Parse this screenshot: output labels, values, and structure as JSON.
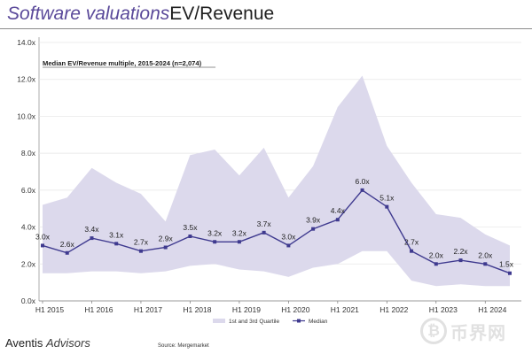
{
  "header": {
    "title_part1": "Software valuations",
    "title_part2": "EV/Revenue"
  },
  "footer": {
    "brand_part1": "Aventis ",
    "brand_part2": "Advisors",
    "source": "Source: Mergemarket"
  },
  "watermark": {
    "glyph": "₿",
    "text": "币界网"
  },
  "colors": {
    "band": "#dcd9ec",
    "line": "#3f3a8f",
    "title_accent": "#5b4a9a"
  },
  "chart_data": {
    "type": "line",
    "subtitle": "Median EV/Revenue multiple, 2015-2024 (n=2,074)",
    "x_ticks": [
      "H1 2015",
      "H1 2016",
      "H1 2017",
      "H1 2018",
      "H1 2019",
      "H1 2020",
      "H1 2021",
      "H1 2022",
      "H1 2023",
      "H1 2024"
    ],
    "y_ticks": [
      "0.0x",
      "2.0x",
      "4.0x",
      "6.0x",
      "8.0x",
      "10.0x",
      "12.0x",
      "14.0x"
    ],
    "ylim": [
      0,
      14
    ],
    "grid": true,
    "legend_position": "bottom",
    "series": [
      {
        "name": "Median",
        "values": [
          3.0,
          2.6,
          3.4,
          3.1,
          2.7,
          2.9,
          3.5,
          3.2,
          3.2,
          3.7,
          3.0,
          3.9,
          4.4,
          6.0,
          5.1,
          2.7,
          2.0,
          2.2,
          2.0,
          1.5
        ],
        "labels": [
          "3.0x",
          "2.6x",
          "3.4x",
          "3.1x",
          "2.7x",
          "2.9x",
          "3.5x",
          "3.2x",
          "3.2x",
          "3.7x",
          "3.0x",
          "3.9x",
          "4.4x",
          "6.0x",
          "5.1x",
          "2.7x",
          "2.0x",
          "2.2x",
          "2.0x",
          "1.5x"
        ]
      }
    ],
    "band": {
      "name": "1st and 3rd Quartile",
      "upper": [
        5.2,
        5.6,
        7.2,
        6.4,
        5.8,
        4.3,
        7.9,
        8.2,
        6.8,
        8.3,
        5.6,
        7.3,
        10.5,
        12.2,
        8.4,
        6.4,
        4.7,
        4.5,
        3.6,
        3.0
      ],
      "lower": [
        1.5,
        1.5,
        1.6,
        1.6,
        1.5,
        1.6,
        1.9,
        2.0,
        1.7,
        1.6,
        1.3,
        1.8,
        2.0,
        2.7,
        2.7,
        1.1,
        0.8,
        0.9,
        0.8,
        0.8
      ]
    }
  }
}
